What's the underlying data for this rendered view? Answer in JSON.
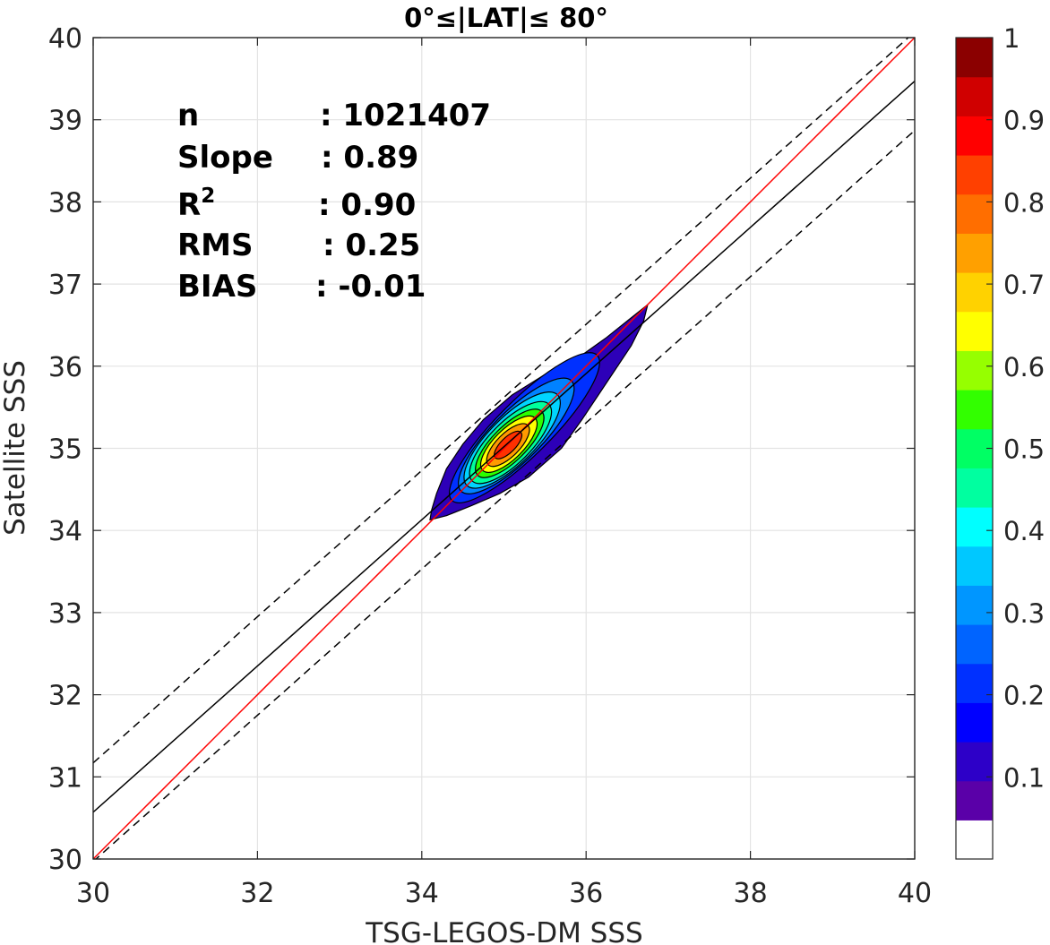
{
  "chart_data": {
    "type": "density-scatter",
    "title": "0°≤|LAT|≤ 80°",
    "xlabel": "TSG-LEGOS-DM SSS",
    "ylabel": "Satellite SSS",
    "xlim": [
      30,
      40
    ],
    "ylim": [
      30,
      40
    ],
    "xticks": [
      "30",
      "32",
      "34",
      "36",
      "38",
      "40"
    ],
    "yticks": [
      "30",
      "31",
      "32",
      "33",
      "34",
      "35",
      "36",
      "37",
      "38",
      "39",
      "40"
    ],
    "grid": true,
    "stats": [
      {
        "label": "n",
        "value": ": 1021407"
      },
      {
        "label": "Slope",
        "value": ": 0.89"
      },
      {
        "label": "R",
        "sup": "2",
        "value": ": 0.90"
      },
      {
        "label": "RMS",
        "value": ": 0.25"
      },
      {
        "label": "BIAS",
        "value": ": -0.01"
      }
    ],
    "lines": {
      "one_to_one": {
        "color": "#ff0000",
        "points": [
          [
            30,
            30
          ],
          [
            40,
            40
          ]
        ]
      },
      "regression": {
        "color": "#000000",
        "points": [
          [
            30,
            30.57
          ],
          [
            40,
            39.47
          ]
        ]
      },
      "upper_envelope": {
        "color": "#000000",
        "style": "dashed",
        "points": [
          [
            30,
            31.17
          ],
          [
            40,
            40.07
          ]
        ]
      },
      "lower_envelope": {
        "color": "#000000",
        "style": "dashed",
        "points": [
          [
            30,
            29.97
          ],
          [
            40,
            38.87
          ]
        ]
      }
    },
    "density": {
      "center": [
        35.05,
        35.03
      ],
      "angle_deg": 45,
      "levels": [
        {
          "level": 0.05,
          "color": "#2d00b8",
          "a": 2.25,
          "b": 0.36,
          "cx": 35.35,
          "cy": 35.38
        },
        {
          "level": 0.15,
          "color": "#0030ff",
          "a": 1.25,
          "b": 0.33,
          "cx": 35.25,
          "cy": 35.25
        },
        {
          "level": 0.25,
          "color": "#0082ff",
          "a": 0.95,
          "b": 0.3,
          "cx": 35.15,
          "cy": 35.15
        },
        {
          "level": 0.35,
          "color": "#00d4ff",
          "a": 0.78,
          "b": 0.28,
          "cx": 35.1,
          "cy": 35.1
        },
        {
          "level": 0.45,
          "color": "#00ff9c",
          "a": 0.66,
          "b": 0.25,
          "cx": 35.08,
          "cy": 35.07
        },
        {
          "level": 0.55,
          "color": "#2cff00",
          "a": 0.55,
          "b": 0.21,
          "cx": 35.07,
          "cy": 35.06
        },
        {
          "level": 0.65,
          "color": "#ffff00",
          "a": 0.45,
          "b": 0.18,
          "cx": 35.06,
          "cy": 35.05
        },
        {
          "level": 0.75,
          "color": "#ff9a00",
          "a": 0.34,
          "b": 0.14,
          "cx": 35.05,
          "cy": 35.04
        },
        {
          "level": 0.85,
          "color": "#ff3000",
          "a": 0.22,
          "b": 0.09,
          "cx": 35.05,
          "cy": 35.04
        }
      ],
      "outer_shape": [
        [
          34.1,
          34.13
        ],
        [
          34.12,
          34.25
        ],
        [
          34.18,
          34.45
        ],
        [
          34.3,
          34.75
        ],
        [
          34.5,
          35.05
        ],
        [
          34.75,
          35.35
        ],
        [
          35.1,
          35.65
        ],
        [
          35.5,
          35.9
        ],
        [
          35.9,
          36.1
        ],
        [
          36.25,
          36.35
        ],
        [
          36.5,
          36.55
        ],
        [
          36.75,
          36.75
        ],
        [
          36.7,
          36.55
        ],
        [
          36.55,
          36.25
        ],
        [
          36.25,
          35.8
        ],
        [
          35.95,
          35.35
        ],
        [
          35.7,
          35.0
        ],
        [
          35.3,
          34.65
        ],
        [
          34.95,
          34.45
        ],
        [
          34.6,
          34.3
        ],
        [
          34.3,
          34.18
        ],
        [
          34.1,
          34.13
        ]
      ]
    },
    "colorbar": {
      "range": [
        0,
        1
      ],
      "ticks": [
        "0.1",
        "0.2",
        "0.3",
        "0.4",
        "0.5",
        "0.6",
        "0.7",
        "0.8",
        "0.9",
        "1"
      ],
      "colors": [
        "#ffffff",
        "#5a00a8",
        "#2d00c8",
        "#0000ff",
        "#0030ff",
        "#0064ff",
        "#0096ff",
        "#00c8ff",
        "#00ffff",
        "#00ffa0",
        "#00ff64",
        "#32ff00",
        "#96ff00",
        "#ffff00",
        "#ffd200",
        "#ffa000",
        "#ff6e00",
        "#ff4000",
        "#ff0000",
        "#d00000",
        "#8b0000"
      ]
    }
  }
}
